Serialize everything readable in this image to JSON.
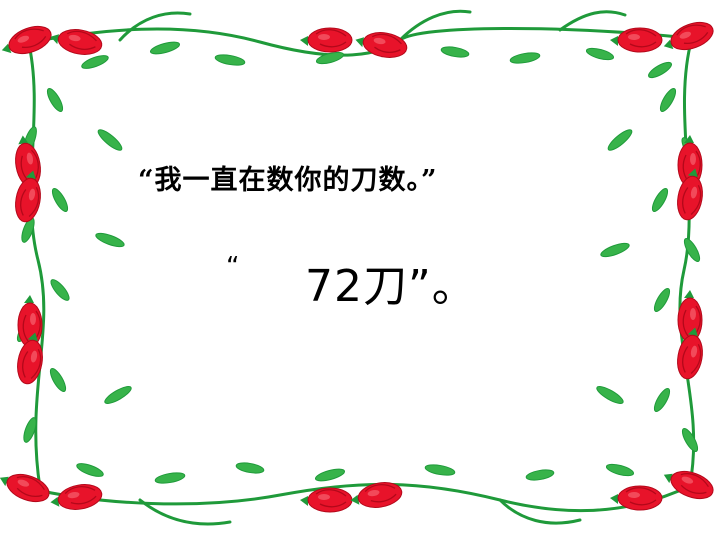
{
  "slide": {
    "line1": "“我一直在数你的刀数。”",
    "line2_open_quote": "“",
    "line2_text": "72刀”。"
  },
  "border": {
    "motif": "red-rose-vine-frame",
    "colors": {
      "flower": "#e8132a",
      "flower_dark": "#b3081a",
      "vine": "#1f9a3a",
      "leaf": "#37b34a"
    }
  }
}
